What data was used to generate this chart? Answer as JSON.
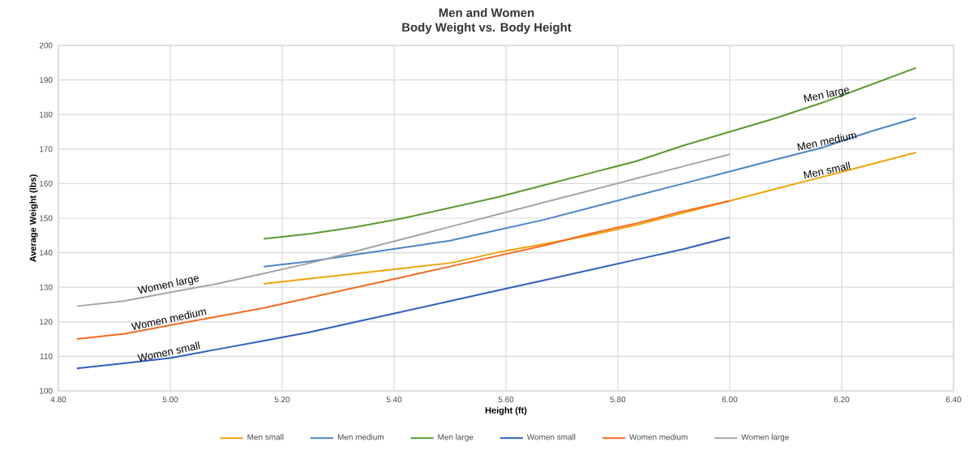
{
  "chart_data": {
    "type": "line",
    "title": "Men and Women",
    "subtitle": "Body Weight vs. Body Height",
    "xlabel": "Height (ft)",
    "ylabel": "Average Weight (lbs)",
    "xlim": [
      4.8,
      6.4
    ],
    "xticks": [
      {
        "value": 4.8,
        "label": "4.80"
      },
      {
        "value": 5.0,
        "label": "5.00"
      },
      {
        "value": 5.2,
        "label": "5.20"
      },
      {
        "value": 5.4,
        "label": "5.40"
      },
      {
        "value": 5.6,
        "label": "5.60"
      },
      {
        "value": 5.8,
        "label": "5.80"
      },
      {
        "value": 6.0,
        "label": "6.00"
      },
      {
        "value": 6.2,
        "label": "6.20"
      },
      {
        "value": 6.4,
        "label": "6.40"
      }
    ],
    "ylim": [
      100,
      200
    ],
    "yticks": [
      {
        "value": 100,
        "label": "100"
      },
      {
        "value": 110,
        "label": "110"
      },
      {
        "value": 120,
        "label": "120"
      },
      {
        "value": 130,
        "label": "130"
      },
      {
        "value": 140,
        "label": "140"
      },
      {
        "value": 150,
        "label": "150"
      },
      {
        "value": 160,
        "label": "160"
      },
      {
        "value": 170,
        "label": "170"
      },
      {
        "value": 180,
        "label": "180"
      },
      {
        "value": 190,
        "label": "190"
      },
      {
        "value": 200,
        "label": "200"
      }
    ],
    "grid": true,
    "legend": "bottom",
    "marker": "none",
    "line_style": "solid",
    "series": [
      {
        "name": "Men small",
        "color": "#f0a30a",
        "x": [
          5.167,
          5.25,
          5.333,
          5.417,
          5.5,
          5.583,
          5.667,
          5.75,
          5.833,
          5.917,
          6.0,
          6.083,
          6.167,
          6.25,
          6.333
        ],
        "values": [
          131,
          132.5,
          134,
          135.5,
          137,
          140,
          142.5,
          145,
          148,
          151.5,
          155,
          158.5,
          162,
          165.5,
          169
        ]
      },
      {
        "name": "Men medium",
        "color": "#4a86c8",
        "x": [
          5.167,
          5.25,
          5.333,
          5.417,
          5.5,
          5.583,
          5.667,
          5.75,
          5.833,
          5.917,
          6.0,
          6.083,
          6.167,
          6.25,
          6.333
        ],
        "values": [
          136,
          137.5,
          139.5,
          141.5,
          143.5,
          146.5,
          149.5,
          153,
          156.5,
          160,
          163.5,
          167,
          170.5,
          175,
          179
        ]
      },
      {
        "name": "Men large",
        "color": "#5b9a2f",
        "x": [
          5.167,
          5.25,
          5.333,
          5.417,
          5.5,
          5.583,
          5.667,
          5.75,
          5.833,
          5.917,
          6.0,
          6.083,
          6.167,
          6.25,
          6.333
        ],
        "values": [
          144,
          145.5,
          147.5,
          150,
          153,
          156,
          159.5,
          163,
          166.5,
          171,
          175,
          179,
          183.5,
          188.5,
          193.5
        ]
      },
      {
        "name": "Women small",
        "color": "#2e5fc0",
        "x": [
          4.833,
          4.917,
          5.0,
          5.083,
          5.167,
          5.25,
          5.333,
          5.417,
          5.5,
          5.583,
          5.667,
          5.75,
          5.833,
          5.917,
          6.0
        ],
        "values": [
          106.5,
          108,
          109.5,
          112,
          114.5,
          117,
          120,
          123,
          126,
          129,
          132,
          135,
          138,
          141,
          144.5
        ]
      },
      {
        "name": "Women medium",
        "color": "#f26b22",
        "x": [
          4.833,
          4.917,
          5.0,
          5.083,
          5.167,
          5.25,
          5.333,
          5.417,
          5.5,
          5.583,
          5.667,
          5.75,
          5.833,
          5.917,
          6.0
        ],
        "values": [
          115,
          116.5,
          119,
          121.5,
          124,
          127,
          130,
          133,
          136,
          139,
          142,
          145.5,
          148.5,
          152,
          155
        ]
      },
      {
        "name": "Women large",
        "color": "#a5a5a5",
        "x": [
          4.833,
          4.917,
          5.0,
          5.083,
          5.167,
          5.25,
          5.333,
          5.417,
          5.5,
          5.583,
          5.667,
          5.75,
          5.833,
          5.917,
          6.0
        ],
        "values": [
          124.5,
          126,
          128.5,
          131,
          134,
          137,
          140.5,
          144,
          147.5,
          151,
          154.5,
          158,
          161.5,
          165,
          168.5
        ]
      }
    ],
    "annotations": [
      "Women large",
      "Women medium",
      "Women small",
      "Men large",
      "Men medium",
      "Men small"
    ]
  }
}
